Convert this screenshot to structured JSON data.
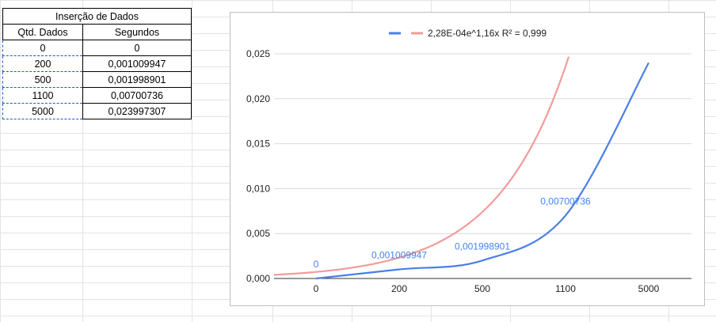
{
  "table": {
    "title": "Inserção de Dados",
    "headers": [
      "Qtd. Dados",
      "Segundos"
    ],
    "rows": [
      [
        "0",
        "0"
      ],
      [
        "200",
        "0,001009947"
      ],
      [
        "500",
        "0,001998901"
      ],
      [
        "1100",
        "0,00700736"
      ],
      [
        "5000",
        "0,023997307"
      ]
    ]
  },
  "chart_data": {
    "type": "line",
    "categories": [
      "0",
      "200",
      "500",
      "1100",
      "5000"
    ],
    "series": [
      {
        "values": [
          0,
          0.001009947,
          0.001998901,
          0.00700736,
          0.023997307
        ],
        "color": "#4a7fe8",
        "data_labels": [
          "0",
          "0,001009947",
          "0,001998901",
          "0,00700736",
          ""
        ]
      },
      {
        "name": "2,28E-04e^1,16x R² = 0,999",
        "color": "#f29b9b",
        "trendline": "exponential"
      }
    ],
    "yticks": [
      "0,000",
      "0,005",
      "0,010",
      "0,015",
      "0,020",
      "0,025"
    ],
    "ylim": [
      0,
      0.025
    ],
    "grid": true,
    "legend": "top"
  }
}
